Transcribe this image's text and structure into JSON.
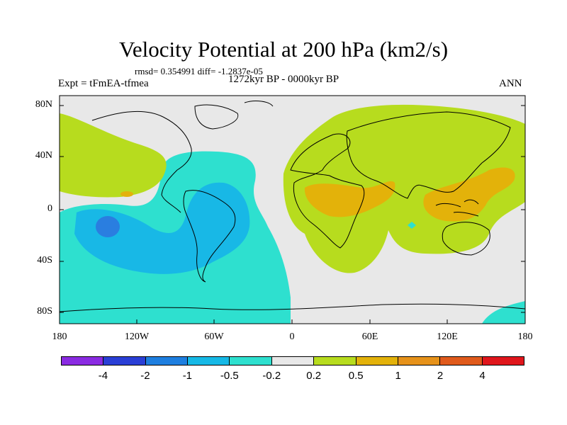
{
  "title": "Velocity Potential at 200 hPa (km2/s)",
  "stats": "rmsd= 0.354991 diff= -1.2837e-05",
  "left_label": "Expt = tFmEA-tfmea",
  "center_label": "1272kyr BP - 0000kyr BP",
  "right_label": "ANN",
  "axes": {
    "lat_labels": [
      "80N",
      "40N",
      "0",
      "40S",
      "80S"
    ],
    "lon_labels": [
      "180",
      "120W",
      "60W",
      "0",
      "60E",
      "120E",
      "180"
    ]
  },
  "colorbar": {
    "colors": [
      "#8a2be2",
      "#2a3fd6",
      "#1e7fe0",
      "#16b9e6",
      "#2ee0cf",
      "#e8e8e8",
      "#b7dc1e",
      "#e3b20a",
      "#e6921a",
      "#e05a1c",
      "#e0161c"
    ],
    "labels": [
      "-4",
      "-2",
      "-1",
      "-0.5",
      "-0.2",
      "0.2",
      "0.5",
      "1",
      "2",
      "4"
    ]
  },
  "field_colors": {
    "strong_negative": "#2a7ee0",
    "negative": "#18b8e6",
    "weak_negative": "#2ee0cf",
    "neutral": "#e8e8e8",
    "weak_positive": "#b7dc1e",
    "positive": "#e3b20a"
  }
}
